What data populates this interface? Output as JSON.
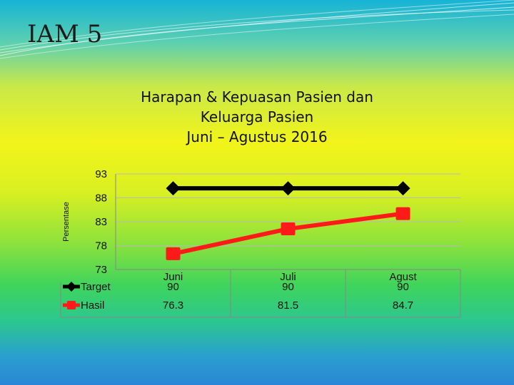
{
  "slide": {
    "title": "IAM 5"
  },
  "chart_data": {
    "type": "line",
    "title_lines": [
      "Harapan & Kepuasan Pasien dan",
      "Keluarga Pasien",
      "Juni – Agustus  2016"
    ],
    "ylabel": "Persentase",
    "yticks": [
      93,
      88,
      83,
      78,
      73
    ],
    "ylim": [
      73,
      93
    ],
    "categories": [
      "Juni",
      "Juli",
      "Agust"
    ],
    "series": [
      {
        "name": "Target",
        "values": [
          90,
          90,
          90
        ],
        "display": [
          "90",
          "90",
          "90"
        ],
        "color": "#000000",
        "marker": "diamond"
      },
      {
        "name": "Hasil",
        "values": [
          76.3,
          81.5,
          84.7
        ],
        "display": [
          "76.3",
          "81.5",
          "84.7"
        ],
        "color": "#ff1a1a",
        "marker": "square"
      }
    ],
    "grid": true,
    "legend": "data-table"
  }
}
